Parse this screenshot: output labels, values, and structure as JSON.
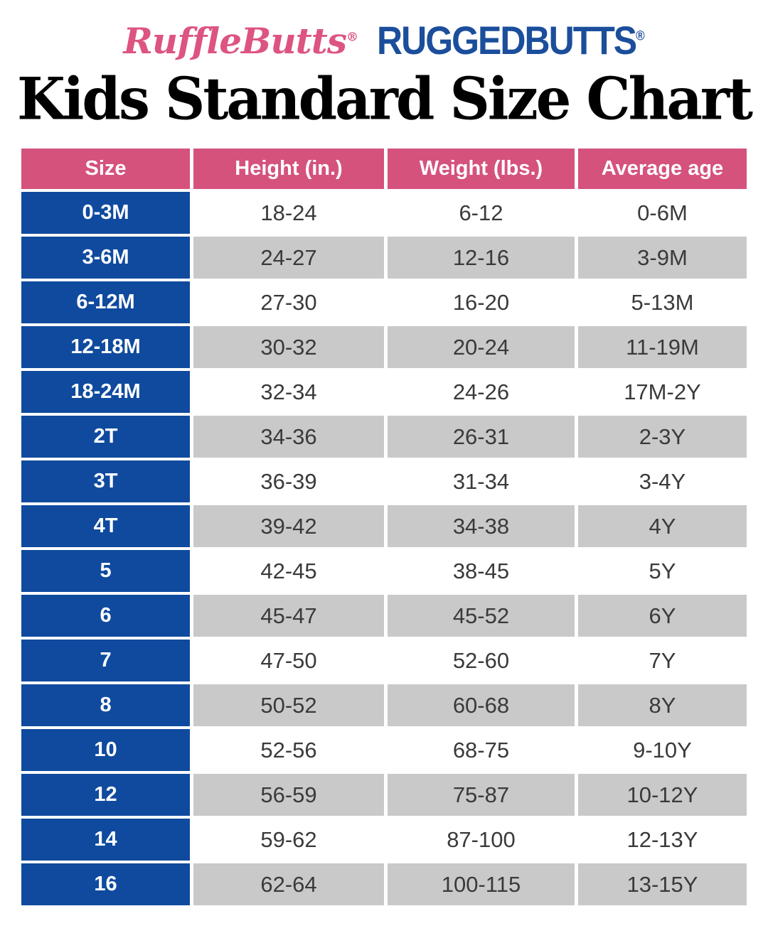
{
  "brand": {
    "rufflebutts_text": "RuffleButts",
    "rufflebutts_trademark": "®",
    "rufflebutts_color": "#dd5480",
    "ruggedbutts_text": "RUGGEDBUTTS",
    "ruggedbutts_trademark": "®",
    "ruggedbutts_color": "#1b4e9b"
  },
  "title": "Kids Standard Size Chart",
  "colors": {
    "header_bg": "#d5527d",
    "header_text": "#ffffff",
    "size_column_bg": "#0f4a9e",
    "size_column_text": "#ffffff",
    "row_white_bg": "#ffffff",
    "row_gray_bg": "#c9c9c9",
    "cell_text": "#3a3a3a",
    "title_text": "#000000"
  },
  "chart_data": {
    "type": "table",
    "title": "Kids Standard Size Chart",
    "columns": [
      "Size",
      "Height (in.)",
      "Weight (lbs.)",
      "Average age"
    ],
    "rows": [
      [
        "0-3M",
        "18-24",
        "6-12",
        "0-6M"
      ],
      [
        "3-6M",
        "24-27",
        "12-16",
        "3-9M"
      ],
      [
        "6-12M",
        "27-30",
        "16-20",
        "5-13M"
      ],
      [
        "12-18M",
        "30-32",
        "20-24",
        "11-19M"
      ],
      [
        "18-24M",
        "32-34",
        "24-26",
        "17M-2Y"
      ],
      [
        "2T",
        "34-36",
        "26-31",
        "2-3Y"
      ],
      [
        "3T",
        "36-39",
        "31-34",
        "3-4Y"
      ],
      [
        "4T",
        "39-42",
        "34-38",
        "4Y"
      ],
      [
        "5",
        "42-45",
        "38-45",
        "5Y"
      ],
      [
        "6",
        "45-47",
        "45-52",
        "6Y"
      ],
      [
        "7",
        "47-50",
        "52-60",
        "7Y"
      ],
      [
        "8",
        "50-52",
        "60-68",
        "8Y"
      ],
      [
        "10",
        "52-56",
        "68-75",
        "9-10Y"
      ],
      [
        "12",
        "56-59",
        "75-87",
        "10-12Y"
      ],
      [
        "14",
        "59-62",
        "87-100",
        "12-13Y"
      ],
      [
        "16",
        "62-64",
        "100-115",
        "13-15Y"
      ]
    ],
    "layout": {
      "row_striping": "white-gray alternating starting with white",
      "first_column_style": "solid blue with white bold text",
      "header_style": "solid pink with white bold text",
      "grid": "white gaps between all cells"
    }
  }
}
